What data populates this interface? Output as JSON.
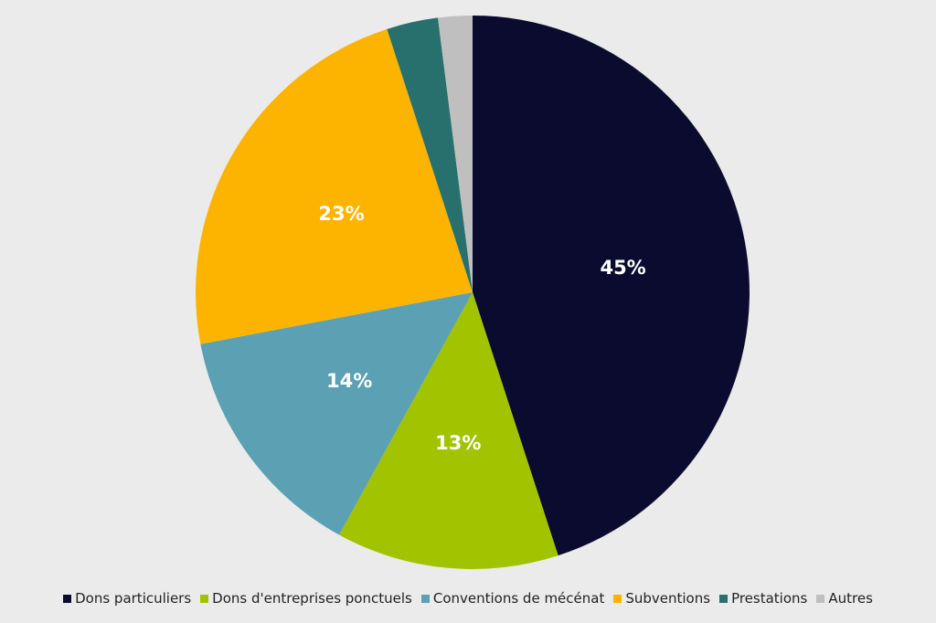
{
  "chart_data": {
    "type": "pie",
    "categories": [
      "Dons particuliers",
      "Dons d'entreprises ponctuels",
      "Conventions de mécénat",
      "Subventions",
      "Prestations",
      "Autres"
    ],
    "values": [
      45,
      13,
      14,
      23,
      3,
      2
    ],
    "value_labels": [
      "45%",
      "13%",
      "14%",
      "23%",
      null,
      null
    ],
    "colors": [
      "#0b0b30",
      "#a2c300",
      "#5ba0b3",
      "#fdb400",
      "#27706d",
      "#bfbfbf"
    ],
    "legend": "bottom"
  }
}
